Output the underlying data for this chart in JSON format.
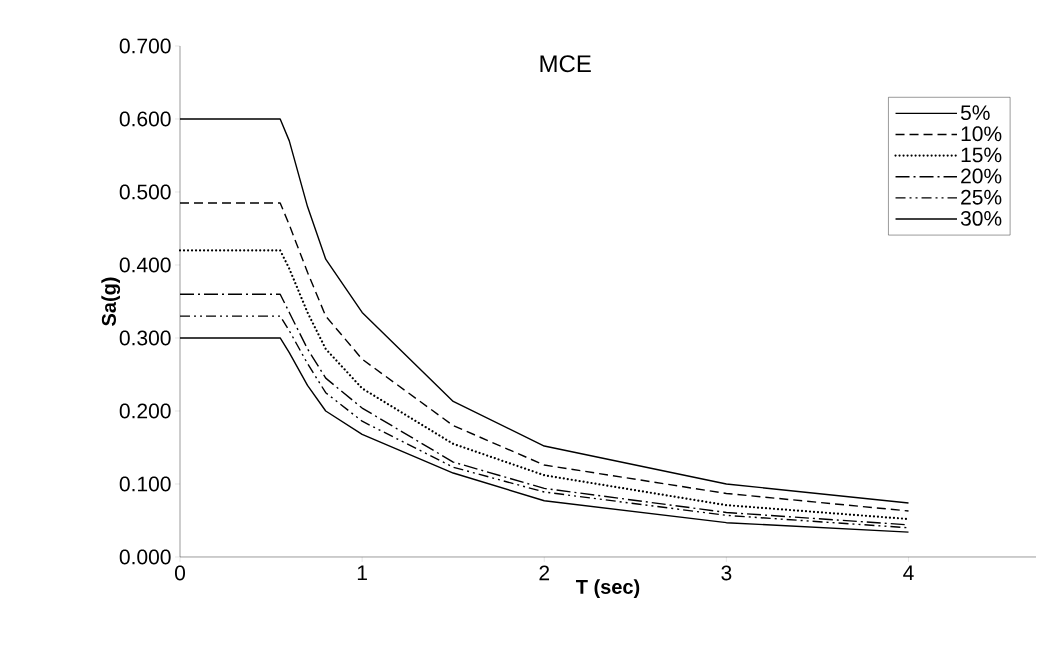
{
  "chart_data": {
    "type": "line",
    "title": "MCE",
    "xlabel": "T (sec)",
    "ylabel": "Sa(g)",
    "x": [
      0,
      0.55,
      0.6,
      0.7,
      0.8,
      1,
      1.5,
      2,
      3,
      4
    ],
    "series": [
      {
        "name": "5%",
        "color": "#000000",
        "line_style": "solid",
        "values": [
          0.6,
          0.6,
          0.57,
          0.48,
          0.408,
          0.335,
          0.213,
          0.152,
          0.1,
          0.074
        ]
      },
      {
        "name": "10%",
        "color": "#000000",
        "line_style": "dashed",
        "values": [
          0.485,
          0.485,
          0.455,
          0.39,
          0.33,
          0.271,
          0.18,
          0.126,
          0.087,
          0.063
        ]
      },
      {
        "name": "15%",
        "color": "#000000",
        "line_style": "dotted",
        "values": [
          0.42,
          0.42,
          0.395,
          0.335,
          0.285,
          0.231,
          0.155,
          0.112,
          0.071,
          0.052
        ]
      },
      {
        "name": "20%",
        "color": "#000000",
        "line_style": "dashdot",
        "values": [
          0.36,
          0.36,
          0.335,
          0.285,
          0.245,
          0.204,
          0.13,
          0.094,
          0.061,
          0.044
        ]
      },
      {
        "name": "25%",
        "color": "#000000",
        "line_style": "dashdotdot",
        "values": [
          0.33,
          0.33,
          0.31,
          0.265,
          0.225,
          0.186,
          0.123,
          0.089,
          0.057,
          0.04
        ]
      },
      {
        "name": "30%",
        "color": "#000000",
        "line_style": "solid",
        "values": [
          0.3,
          0.3,
          0.28,
          0.235,
          0.2,
          0.168,
          0.115,
          0.077,
          0.047,
          0.034
        ]
      }
    ],
    "xlim": [
      0,
      4.7
    ],
    "ylim": [
      0,
      0.7
    ],
    "xticks": [
      0,
      1,
      2,
      3,
      4
    ],
    "yticks": [
      {
        "value": 0,
        "label": "0.000"
      },
      {
        "value": 0.1,
        "label": "0.100"
      },
      {
        "value": 0.2,
        "label": "0.200"
      },
      {
        "value": 0.3,
        "label": "0.300"
      },
      {
        "value": 0.4,
        "label": "0.400"
      },
      {
        "value": 0.5,
        "label": "0.500"
      },
      {
        "value": 0.6,
        "label": "0.600"
      },
      {
        "value": 0.7,
        "label": "0.700"
      }
    ],
    "legend": "top right",
    "grid": false,
    "marker": "none"
  }
}
